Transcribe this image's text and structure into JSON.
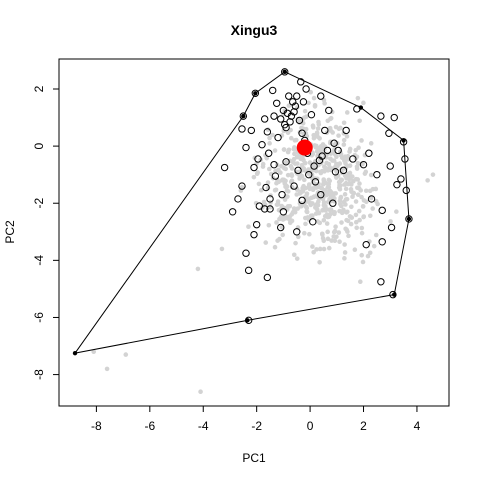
{
  "chart_data": {
    "type": "scatter",
    "title": "Xingu3",
    "xlabel": "PC1",
    "ylabel": "PC2",
    "xlim": [
      -9.4,
      5.2
    ],
    "ylim": [
      -9.1,
      3.05
    ],
    "xticks": [
      -8,
      -6,
      -4,
      -2,
      0,
      2,
      4
    ],
    "yticks": [
      -8,
      -6,
      -4,
      -2,
      0,
      2
    ],
    "tick_labels_x": [
      "-8",
      "-6",
      "-4",
      "-2",
      "0",
      "2",
      "4"
    ],
    "tick_labels_y": [
      "-8",
      "-6",
      "-4",
      "-2",
      "0",
      "2"
    ],
    "grid": false,
    "colors": {
      "background_points": "#d3d3d3",
      "highlight_outline": "#000000",
      "centroid": "#ff0000",
      "hull": "#000000"
    },
    "background_cloud": {
      "description_count": 600,
      "x_range": [
        -3.5,
        4.7
      ],
      "y_range": [
        -6.2,
        2.3
      ],
      "center": [
        0.3,
        -1.2
      ],
      "outliers": [
        [
          -8.1,
          -7.2
        ],
        [
          -7.6,
          -7.8
        ],
        [
          -6.9,
          -7.3
        ],
        [
          -4.2,
          -4.3
        ],
        [
          -4.1,
          -8.6
        ],
        [
          -3.3,
          -3.6
        ],
        [
          4.6,
          -1.0
        ],
        [
          4.4,
          -1.2
        ]
      ]
    },
    "highlighted_points": [
      [
        -0.95,
        2.6
      ],
      [
        -2.05,
        1.85
      ],
      [
        -2.5,
        1.05
      ],
      [
        -2.4,
        -0.05
      ],
      [
        -2.55,
        -1.4
      ],
      [
        -3.2,
        -0.75
      ],
      [
        -2.1,
        -3.1
      ],
      [
        -2.4,
        -3.75
      ],
      [
        -2.3,
        -4.35
      ],
      [
        -1.6,
        -4.6
      ],
      [
        -2.3,
        -6.1
      ],
      [
        1.75,
        1.3
      ],
      [
        2.65,
        1.05
      ],
      [
        3.5,
        0.15
      ],
      [
        3.55,
        -0.45
      ],
      [
        3.7,
        -2.55
      ],
      [
        3.6,
        -1.55
      ],
      [
        3.1,
        -5.2
      ],
      [
        2.65,
        -4.75
      ],
      [
        2.1,
        -3.45
      ],
      [
        2.0,
        -0.65
      ],
      [
        2.5,
        -1.0
      ],
      [
        3.4,
        -1.15
      ],
      [
        2.3,
        -1.85
      ],
      [
        0.95,
        -0.9
      ],
      [
        0.1,
        -2.65
      ],
      [
        -0.5,
        -3.0
      ],
      [
        -1.0,
        -2.3
      ],
      [
        -1.5,
        -2.2
      ],
      [
        -1.7,
        -2.2
      ],
      [
        -1.9,
        -2.1
      ],
      [
        -1.55,
        -0.25
      ],
      [
        -1.2,
        0.3
      ],
      [
        -0.9,
        0.65
      ],
      [
        -0.7,
        1.05
      ],
      [
        -0.55,
        1.4
      ],
      [
        -0.8,
        1.75
      ],
      [
        -0.4,
        0.9
      ],
      [
        -0.3,
        0.45
      ],
      [
        -0.1,
        -0.25
      ],
      [
        0.35,
        -0.5
      ],
      [
        0.55,
        0.55
      ],
      [
        0.65,
        -0.15
      ],
      [
        1.05,
        -0.15
      ],
      [
        -1.1,
        0.95
      ],
      [
        -0.85,
        1.15
      ],
      [
        -1.0,
        1.25
      ],
      [
        -0.6,
        1.2
      ],
      [
        -0.75,
        0.85
      ],
      [
        -0.95,
        0.75
      ],
      [
        -1.25,
        1.5
      ],
      [
        -0.65,
        1.55
      ],
      [
        -1.35,
        1.05
      ],
      [
        -1.6,
        0.5
      ],
      [
        -1.95,
        -0.45
      ],
      [
        -2.1,
        -0.75
      ],
      [
        -1.3,
        -1.05
      ],
      [
        -0.6,
        -1.4
      ],
      [
        -0.05,
        -1.0
      ],
      [
        0.4,
        -1.7
      ],
      [
        0.85,
        -2.0
      ],
      [
        1.25,
        -0.85
      ],
      [
        -1.5,
        -1.85
      ],
      [
        -2.0,
        -2.75
      ],
      [
        -2.7,
        -1.85
      ],
      [
        -1.8,
        0.05
      ],
      [
        -1.7,
        0.95
      ],
      [
        -1.4,
        1.95
      ],
      [
        -0.5,
        1.75
      ],
      [
        -0.25,
        1.55
      ],
      [
        0.05,
        1.1
      ],
      [
        -0.2,
        0.2
      ],
      [
        0.15,
        -0.7
      ],
      [
        0.9,
        0.1
      ],
      [
        1.6,
        -0.45
      ],
      [
        2.2,
        -0.25
      ],
      [
        2.95,
        0.45
      ],
      [
        3.15,
        1.0
      ],
      [
        3.0,
        -0.7
      ],
      [
        2.7,
        -2.25
      ],
      [
        3.05,
        -2.85
      ],
      [
        2.7,
        -3.35
      ],
      [
        3.25,
        -1.35
      ],
      [
        -2.9,
        -2.3
      ],
      [
        -1.1,
        -2.85
      ],
      [
        -0.3,
        -1.9
      ],
      [
        0.2,
        -1.25
      ],
      [
        -0.9,
        -0.55
      ],
      [
        -1.35,
        -0.65
      ],
      [
        -2.2,
        0.55
      ],
      [
        -2.55,
        0.6
      ],
      [
        -0.35,
        2.25
      ],
      [
        -0.15,
        2.0
      ],
      [
        0.4,
        1.75
      ],
      [
        0.7,
        1.25
      ],
      [
        -1.65,
        -1.45
      ],
      [
        -1.05,
        -1.7
      ],
      [
        -0.45,
        -0.85
      ],
      [
        0.45,
        -0.35
      ],
      [
        1.35,
        0.55
      ]
    ],
    "centroid": {
      "x": -0.2,
      "y": -0.05
    },
    "hull": [
      [
        -0.95,
        2.6
      ],
      [
        1.9,
        1.35
      ],
      [
        3.5,
        0.2
      ],
      [
        3.7,
        -2.55
      ],
      [
        3.15,
        -5.2
      ],
      [
        -2.35,
        -6.1
      ],
      [
        -8.8,
        -7.25
      ],
      [
        -2.5,
        1.05
      ],
      [
        -2.05,
        1.85
      ]
    ]
  }
}
